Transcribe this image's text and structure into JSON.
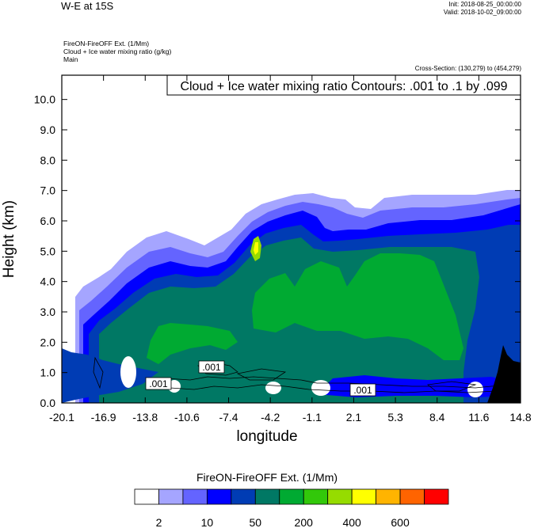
{
  "header": {
    "title": "W-E at 15S",
    "init": "Init: 2018-08-25_00:00:00",
    "valid": "Valid: 2018-10-02_09:00:00",
    "subtitle_lines": [
      "FireON-FireOFF Ext.   (1/Mm)",
      "Cloud + Ice water mixing ratio   (g/kg)",
      "Main"
    ],
    "cross_section": "Cross-Section: (130,279) to (454,279)"
  },
  "chart_data": {
    "type": "contour",
    "title": "Cloud + Ice water mixing ratio Contours: .001 to .1 by .099",
    "xlabel": "longitude",
    "ylabel": "Height (km)",
    "xlim": [
      -20.1,
      14.8
    ],
    "ylim": [
      0,
      10.8
    ],
    "x_ticks": [
      "-20.1",
      "-16.9",
      "-13.8",
      "-10.6",
      "-7.4",
      "-4.2",
      "-1.1",
      "2.1",
      "5.3",
      "8.4",
      "11.6",
      "14.8"
    ],
    "y_ticks": [
      "0.0",
      "1.0",
      "2.0",
      "3.0",
      "4.0",
      "5.0",
      "6.0",
      "7.0",
      "8.0",
      "9.0",
      "10.0"
    ],
    "contour_labels": [
      ".001",
      ".001",
      ".001"
    ],
    "colorbar": {
      "title": "FireON-FireOFF Ext.  (1/Mm)",
      "labels": [
        "2",
        "10",
        "50",
        "200",
        "400",
        "600"
      ],
      "colors": [
        "#ffffff",
        "#a5a5ff",
        "#6464ff",
        "#0000ff",
        "#003cb4",
        "#007864",
        "#00aa32",
        "#32c80a",
        "#96dc00",
        "#ffff00",
        "#ffb400",
        "#ff6400",
        "#ff0000"
      ]
    }
  }
}
